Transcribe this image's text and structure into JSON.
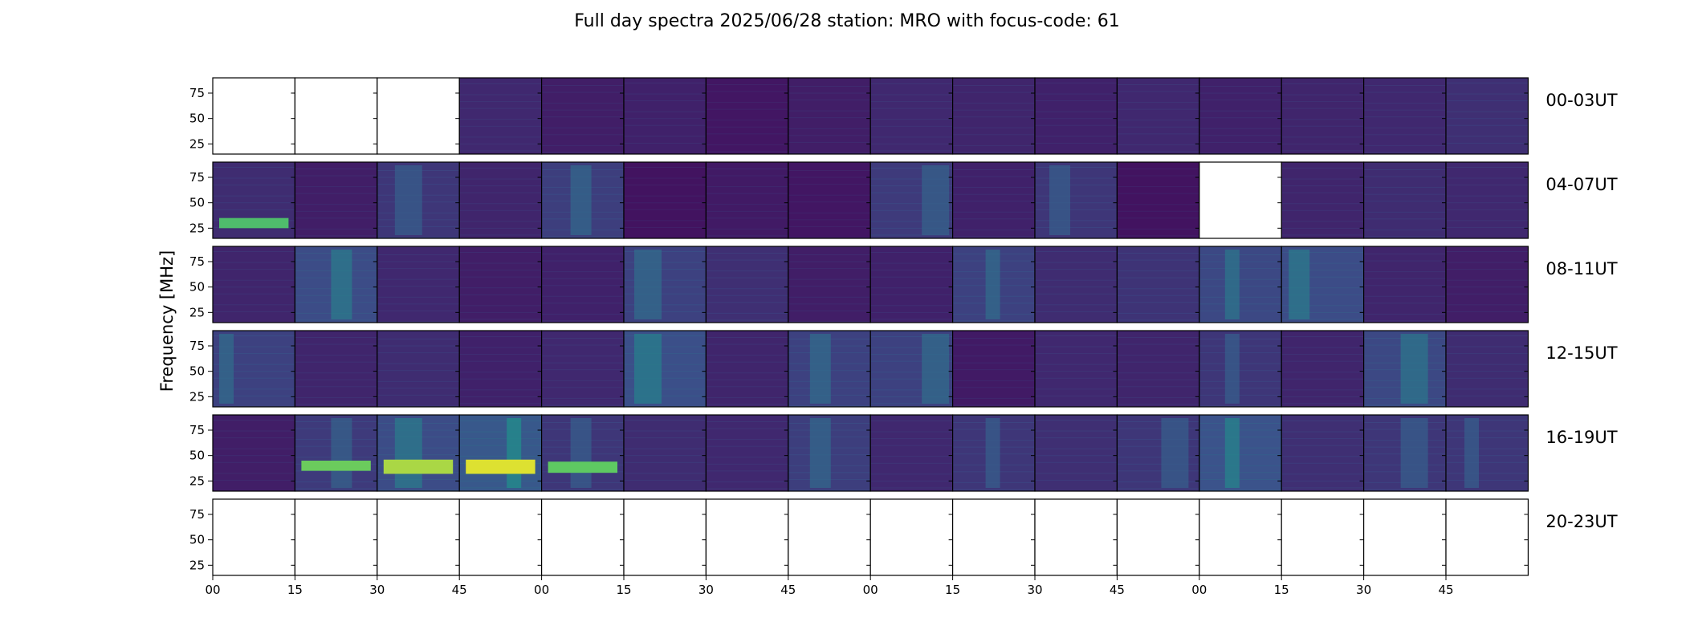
{
  "chart_data": {
    "type": "heatmap",
    "title": "Full day spectra 2025/06/28 station: MRO with focus-code: 61",
    "ylabel": "Frequency [MHz]",
    "ylim": [
      15,
      90
    ],
    "yticks": [
      25,
      50,
      75
    ],
    "xticks": [
      "00",
      "15",
      "30",
      "45",
      "00",
      "15",
      "30",
      "45",
      "00",
      "15",
      "30",
      "45",
      "00",
      "15",
      "30",
      "45"
    ],
    "rows": [
      {
        "label": "00-03UT",
        "panels": [
          {
            "empty": true
          },
          {
            "empty": true
          },
          {
            "empty": true
          },
          {
            "level": 0.22
          },
          {
            "level": 0.16
          },
          {
            "level": 0.18
          },
          {
            "level": 0.12
          },
          {
            "level": 0.16
          },
          {
            "level": 0.22
          },
          {
            "level": 0.2
          },
          {
            "level": 0.18
          },
          {
            "level": 0.22
          },
          {
            "level": 0.18
          },
          {
            "level": 0.2
          },
          {
            "level": 0.22
          },
          {
            "level": 0.26
          }
        ]
      },
      {
        "label": "04-07UT",
        "panels": [
          {
            "level": 0.24,
            "band": [
              25,
              35
            ]
          },
          {
            "level": 0.16
          },
          {
            "level": 0.3
          },
          {
            "level": 0.2
          },
          {
            "level": 0.34
          },
          {
            "level": 0.1
          },
          {
            "level": 0.14
          },
          {
            "level": 0.12
          },
          {
            "level": 0.32
          },
          {
            "level": 0.18
          },
          {
            "level": 0.3
          },
          {
            "level": 0.1
          },
          {
            "empty": true
          },
          {
            "level": 0.2
          },
          {
            "level": 0.24
          },
          {
            "level": 0.22
          }
        ]
      },
      {
        "label": "08-11UT",
        "panels": [
          {
            "level": 0.2
          },
          {
            "level": 0.42
          },
          {
            "level": 0.22
          },
          {
            "level": 0.16
          },
          {
            "level": 0.18
          },
          {
            "level": 0.36
          },
          {
            "level": 0.26
          },
          {
            "level": 0.16
          },
          {
            "level": 0.18
          },
          {
            "level": 0.36
          },
          {
            "level": 0.24
          },
          {
            "level": 0.28
          },
          {
            "level": 0.4
          },
          {
            "level": 0.42
          },
          {
            "level": 0.2
          },
          {
            "level": 0.16
          }
        ]
      },
      {
        "label": "12-15UT",
        "panels": [
          {
            "level": 0.36
          },
          {
            "level": 0.2
          },
          {
            "level": 0.24
          },
          {
            "level": 0.18
          },
          {
            "level": 0.22
          },
          {
            "level": 0.44
          },
          {
            "level": 0.2
          },
          {
            "level": 0.36
          },
          {
            "level": 0.36
          },
          {
            "level": 0.14
          },
          {
            "level": 0.22
          },
          {
            "level": 0.2
          },
          {
            "level": 0.3
          },
          {
            "level": 0.2
          },
          {
            "level": 0.4
          },
          {
            "level": 0.24
          }
        ]
      },
      {
        "label": "16-19UT",
        "panels": [
          {
            "level": 0.16
          },
          {
            "level": 0.32,
            "band": [
              35,
              45
            ]
          },
          {
            "level": 0.42,
            "band": [
              32,
              46
            ]
          },
          {
            "level": 0.5,
            "band": [
              32,
              46
            ]
          },
          {
            "level": 0.3,
            "band": [
              33,
              44
            ]
          },
          {
            "level": 0.24
          },
          {
            "level": 0.22
          },
          {
            "level": 0.34
          },
          {
            "level": 0.22
          },
          {
            "level": 0.3
          },
          {
            "level": 0.26
          },
          {
            "level": 0.3
          },
          {
            "level": 0.46
          },
          {
            "level": 0.26
          },
          {
            "level": 0.3
          },
          {
            "level": 0.3
          }
        ]
      },
      {
        "label": "20-23UT",
        "panels": [
          {
            "empty": true
          },
          {
            "empty": true
          },
          {
            "empty": true
          },
          {
            "empty": true
          },
          {
            "empty": true
          },
          {
            "empty": true
          },
          {
            "empty": true
          },
          {
            "empty": true
          },
          {
            "empty": true
          },
          {
            "empty": true
          },
          {
            "empty": true
          },
          {
            "empty": true
          },
          {
            "empty": true
          },
          {
            "empty": true
          },
          {
            "empty": true
          },
          {
            "empty": true
          }
        ]
      }
    ],
    "colormap": [
      "#440154",
      "#3b528b",
      "#21918c",
      "#5ec962",
      "#fde725"
    ]
  }
}
